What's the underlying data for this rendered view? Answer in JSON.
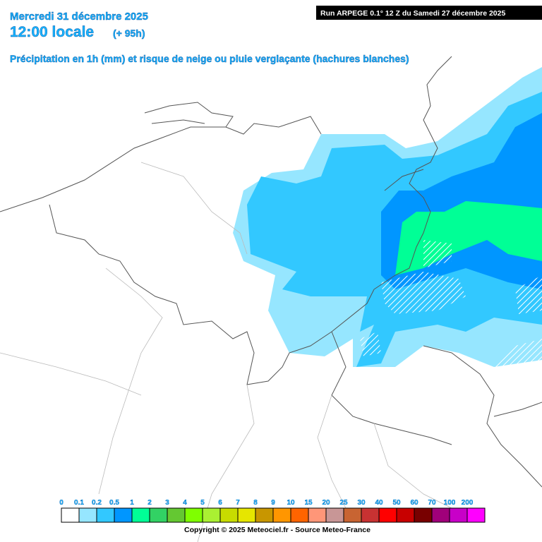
{
  "header": {
    "date": "Mercredi 31 décembre 2025",
    "time": "12:00 locale",
    "lead": "(+ 95h)",
    "subtitle": "Précipitation en 1h (mm) et risque de neige ou pluie verglaçante (hachures blanches)",
    "run": "Run ARPEGE 0.1° 12 Z du Samedi 27 décembre 2025"
  },
  "legend": {
    "labels": [
      "0",
      "0.1",
      "0.2",
      "0.5",
      "1",
      "2",
      "3",
      "4",
      "5",
      "6",
      "7",
      "8",
      "9",
      "10",
      "15",
      "20",
      "25",
      "30",
      "40",
      "50",
      "60",
      "70",
      "100",
      "200"
    ],
    "colors": [
      "#ffffff",
      "#96e6ff",
      "#32c8ff",
      "#0096ff",
      "#00ff96",
      "#32d264",
      "#64c832",
      "#7fff00",
      "#aaf032",
      "#c8dc00",
      "#e6e600",
      "#c89600",
      "#ff9600",
      "#ff6400",
      "#ff9678",
      "#c89696",
      "#c86432",
      "#c83232",
      "#ff0000",
      "#c80000",
      "#780000",
      "#a0007a",
      "#c800c8",
      "#ff00ff"
    ]
  },
  "footer": {
    "copyright": "Copyright © 2025 Meteociel.fr - Source Meteo-France"
  }
}
